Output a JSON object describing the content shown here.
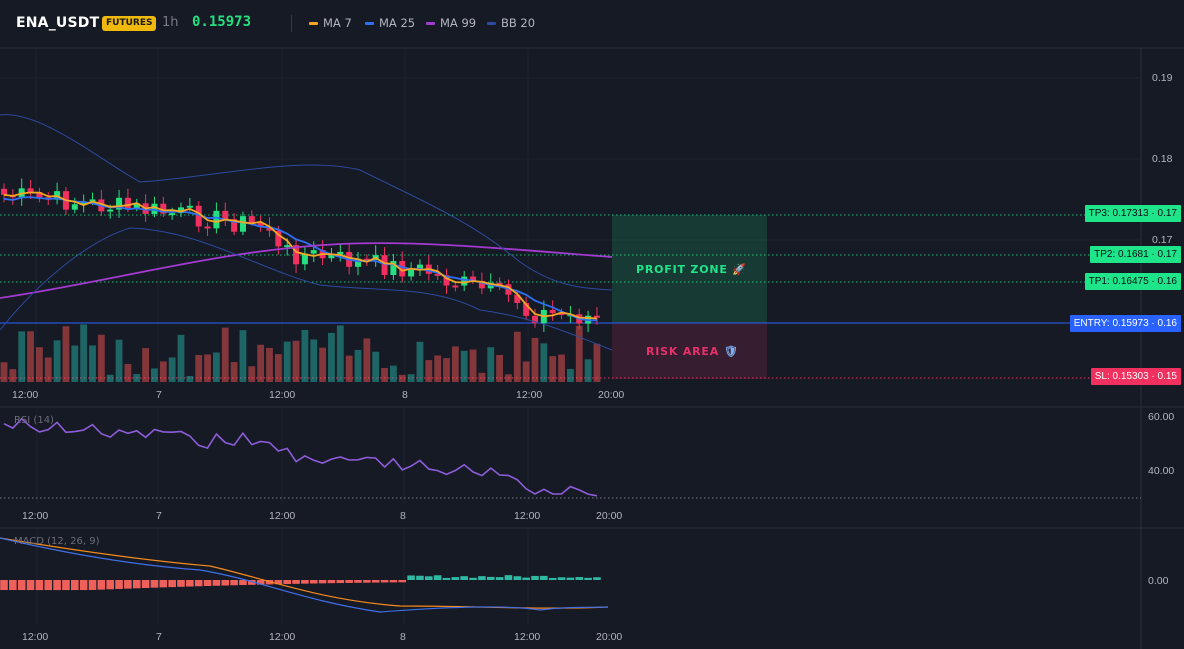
{
  "header": {
    "symbol": "ENA_USDT",
    "badge": "FUTURES",
    "timeframe": "1h",
    "last_price": "0.15973"
  },
  "legend": [
    {
      "label": "MA 7",
      "color": "#f5a623"
    },
    {
      "label": "MA 25",
      "color": "#2f6ff5"
    },
    {
      "label": "MA 99",
      "color": "#a43bd1"
    },
    {
      "label": "BB 20",
      "color": "#2c4a9e"
    }
  ],
  "colors": {
    "bull": "#26e07f",
    "bear": "#f0315f",
    "profit": "#1fe58a",
    "risk": "#e8306b",
    "entry": "#2962ff",
    "badge": "#f0b90b"
  },
  "price_axis": {
    "ticks": [
      "0.19",
      "0.18",
      "0.17"
    ]
  },
  "levels": [
    {
      "label": "TP3: 0.17313",
      "axis": "0.17",
      "kind": "tp"
    },
    {
      "label": "TP2: 0.1681",
      "axis": "0.17",
      "kind": "tp"
    },
    {
      "label": "TP1: 0.16475",
      "axis": "0.16",
      "kind": "tp"
    },
    {
      "label": "ENTRY: 0.15973",
      "axis": "0.16",
      "kind": "entry"
    },
    {
      "label": "SL: 0.15303",
      "axis": "0.15",
      "kind": "sl"
    }
  ],
  "zones": {
    "profit": "PROFIT ZONE",
    "risk": "RISK AREA"
  },
  "time_axis": [
    "12:00",
    "7",
    "12:00",
    "8",
    "12:00",
    "20:00"
  ],
  "rsi": {
    "name": "RSI (14)",
    "ticks": [
      "60.00",
      "40.00"
    ]
  },
  "macd": {
    "name": "MACD (12, 26, 9)",
    "ticks": [
      "0.00"
    ]
  }
}
